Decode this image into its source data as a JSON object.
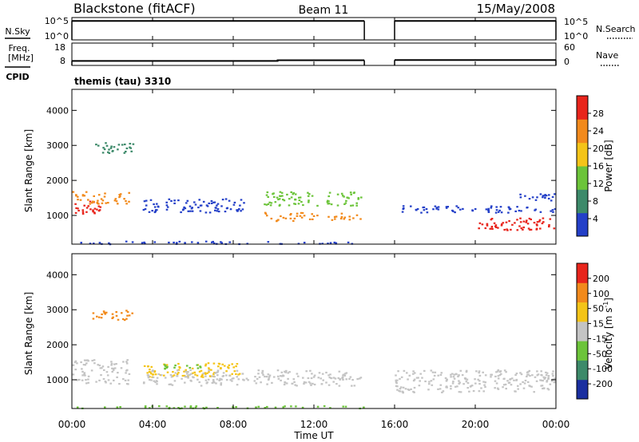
{
  "header": {
    "station": "Blackstone (fitACF)",
    "beam": "Beam 11",
    "date": "15/May/2008"
  },
  "left_labels": {
    "nsky": "N.Sky",
    "freq_line1": "Freq.",
    "freq_line2": "[MHz]",
    "cpid": "CPID"
  },
  "right_labels": {
    "nsearch": "N.Search",
    "nave": "Nave"
  },
  "cpid_value": "themis (tau) 3310",
  "colors": {
    "red": "#e8251c",
    "orange": "#f28a1c",
    "yellow": "#f4c418",
    "green": "#6cc43a",
    "teal": "#3d8a6a",
    "blue": "#2440c8",
    "navy": "#1a2fa0",
    "gray": "#c4c4c4"
  },
  "chart_data": [
    {
      "id": "noise",
      "type": "line",
      "tick_labels_left": [
        "10^5",
        "10^0"
      ],
      "tick_labels_right": [
        "10^5",
        "10^0"
      ],
      "gaps_hours": [
        [
          14.5,
          16.0
        ]
      ],
      "series": [
        {
          "x": [
            0,
            14.5
          ],
          "y": [
            0.85,
            0.85
          ]
        },
        {
          "x": [
            16,
            24
          ],
          "y": [
            0.85,
            0.85
          ]
        }
      ]
    },
    {
      "id": "freq",
      "type": "line",
      "tick_labels_left": [
        "18",
        "8"
      ],
      "tick_labels_right": [
        "60",
        "0"
      ],
      "series": [
        {
          "x": [
            0,
            10.2,
            10.2,
            14.5
          ],
          "y": [
            10,
            10,
            10.3,
            10.3
          ]
        },
        {
          "x": [
            16,
            24
          ],
          "y": [
            10.4,
            10.4
          ]
        }
      ]
    },
    {
      "id": "power",
      "type": "heatmap",
      "ylabel": "Slant Range [km]",
      "ylim": [
        180,
        4600
      ],
      "y_ticks": [
        "4000",
        "3000",
        "2000",
        "1000"
      ],
      "colorbar": {
        "label": "Power [dB]",
        "ticks": [
          "28",
          "24",
          "20",
          "16",
          "12",
          "8",
          "4"
        ],
        "range": [
          0,
          32
        ],
        "stops": [
          "#2440c8",
          "#3d8a6a",
          "#6cc43a",
          "#f4c418",
          "#f28a1c",
          "#e8251c"
        ]
      },
      "regions": [
        {
          "t": [
            0.0,
            1.4
          ],
          "r": [
            1050,
            1450
          ],
          "color": "#e8251c"
        },
        {
          "t": [
            0.0,
            2.8
          ],
          "r": [
            1350,
            1700
          ],
          "color": "#f28a1c"
        },
        {
          "t": [
            1.0,
            3.2
          ],
          "r": [
            2800,
            3100
          ],
          "color": "#3d8a6a"
        },
        {
          "t": [
            3.5,
            8.5
          ],
          "r": [
            1100,
            1500
          ],
          "color": "#2440c8"
        },
        {
          "t": [
            9.5,
            14.3
          ],
          "r": [
            1300,
            1700
          ],
          "color": "#6cc43a"
        },
        {
          "t": [
            9.5,
            14.3
          ],
          "r": [
            850,
            1100
          ],
          "color": "#f28a1c"
        },
        {
          "t": [
            16.0,
            24.0
          ],
          "r": [
            1100,
            1300
          ],
          "color": "#2440c8"
        },
        {
          "t": [
            20.0,
            24.0
          ],
          "r": [
            600,
            950
          ],
          "color": "#e8251c"
        },
        {
          "t": [
            22.0,
            24.0
          ],
          "r": [
            1450,
            1700
          ],
          "color": "#2440c8"
        },
        {
          "t": [
            0.0,
            14.5
          ],
          "r": [
            200,
            280
          ],
          "color": "#2440c8"
        }
      ]
    },
    {
      "id": "velocity",
      "type": "heatmap",
      "ylabel": "Slant Range [km]",
      "ylim": [
        180,
        4600
      ],
      "y_ticks": [
        "4000",
        "3000",
        "2000",
        "1000"
      ],
      "colorbar": {
        "label": "Velocity [m s^-1]",
        "ticks": [
          "200",
          "100",
          "50",
          "15",
          "-15",
          "-50",
          "-100",
          "-200"
        ],
        "range": [
          -250,
          250
        ],
        "stops": [
          "#1a2fa0",
          "#3d8a6a",
          "#6cc43a",
          "#c4c4c4",
          "#f4c418",
          "#f28a1c",
          "#e8251c"
        ]
      },
      "regions": [
        {
          "t": [
            0.0,
            2.8
          ],
          "r": [
            900,
            1600
          ],
          "color": "#c4c4c4"
        },
        {
          "t": [
            1.0,
            3.2
          ],
          "r": [
            2700,
            3000
          ],
          "color": "#f28a1c"
        },
        {
          "t": [
            3.5,
            8.5
          ],
          "r": [
            1100,
            1500
          ],
          "color": "#f4c418"
        },
        {
          "t": [
            4.5,
            7.0
          ],
          "r": [
            1300,
            1450
          ],
          "color": "#6cc43a"
        },
        {
          "t": [
            3.5,
            14.3
          ],
          "r": [
            850,
            1300
          ],
          "color": "#c4c4c4"
        },
        {
          "t": [
            16.0,
            24.0
          ],
          "r": [
            650,
            1300
          ],
          "color": "#c4c4c4"
        },
        {
          "t": [
            0.0,
            14.5
          ],
          "r": [
            200,
            280
          ],
          "color": "#6cc43a"
        }
      ]
    }
  ],
  "x_axis": {
    "ticks": [
      "00:00",
      "04:00",
      "08:00",
      "12:00",
      "16:00",
      "20:00",
      "00:00"
    ],
    "tick_hours": [
      0,
      4,
      8,
      12,
      16,
      20,
      24
    ],
    "label": "Time UT"
  }
}
